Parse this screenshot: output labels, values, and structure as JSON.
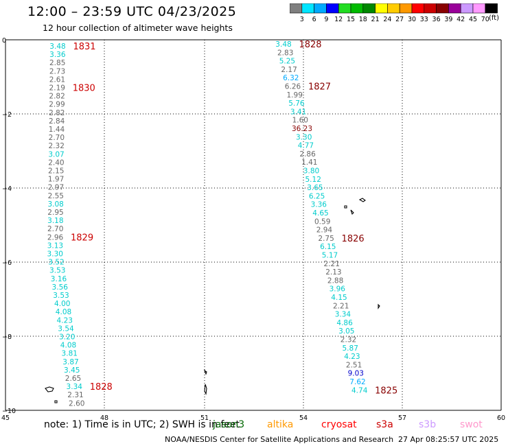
{
  "header": {
    "title": "12:00 – 23:59 UTC 04/23/2025",
    "subtitle": "12 hour collection of altimeter wave heights"
  },
  "colorbar": {
    "labels": [
      "3",
      "6",
      "9",
      "12",
      "15",
      "18",
      "21",
      "24",
      "27",
      "30",
      "33",
      "36",
      "39",
      "42",
      "45",
      "70"
    ],
    "colors": [
      "#7f7f7f",
      "#00e5ff",
      "#00aaff",
      "#0000ff",
      "#22dd22",
      "#00bb00",
      "#008800",
      "#ffff00",
      "#ffcc00",
      "#ff9900",
      "#ff0000",
      "#cc0000",
      "#880000",
      "#990099",
      "#cc99ff",
      "#ff99ff",
      "#000000"
    ],
    "unit": "(ft)"
  },
  "axes": {
    "x_ticks": [
      "45",
      "48",
      "51",
      "54",
      "57",
      "60"
    ],
    "y_ticks": [
      "0",
      "−2",
      "−4",
      "−6",
      "−8",
      "−10"
    ]
  },
  "tracks": [
    {
      "hour_labels": [
        {
          "text": "1831",
          "color": "#cc0000",
          "index": 0
        },
        {
          "text": "1830",
          "color": "#cc0000",
          "index": 5
        },
        {
          "text": "1829",
          "color": "#cc0000",
          "index": 23
        },
        {
          "text": "1828",
          "color": "#cc0000",
          "index": 41
        }
      ],
      "points": [
        {
          "v": "3.48",
          "c": "#00cccc"
        },
        {
          "v": "3.36",
          "c": "#00cccc"
        },
        {
          "v": "2.85",
          "c": "#666666"
        },
        {
          "v": "2.73",
          "c": "#666666"
        },
        {
          "v": "2.61",
          "c": "#666666"
        },
        {
          "v": "2.19",
          "c": "#666666"
        },
        {
          "v": "2.82",
          "c": "#666666"
        },
        {
          "v": "2.99",
          "c": "#666666"
        },
        {
          "v": "2.82",
          "c": "#666666"
        },
        {
          "v": "2.84",
          "c": "#666666"
        },
        {
          "v": "1.44",
          "c": "#666666"
        },
        {
          "v": "2.70",
          "c": "#666666"
        },
        {
          "v": "2.32",
          "c": "#666666"
        },
        {
          "v": "3.07",
          "c": "#00cccc"
        },
        {
          "v": "2.40",
          "c": "#666666"
        },
        {
          "v": "2.15",
          "c": "#666666"
        },
        {
          "v": "1.97",
          "c": "#666666"
        },
        {
          "v": "2.97",
          "c": "#666666"
        },
        {
          "v": "2.55",
          "c": "#666666"
        },
        {
          "v": "3.08",
          "c": "#00cccc"
        },
        {
          "v": "2.95",
          "c": "#666666"
        },
        {
          "v": "3.18",
          "c": "#00cccc"
        },
        {
          "v": "2.70",
          "c": "#666666"
        },
        {
          "v": "2.96",
          "c": "#666666"
        },
        {
          "v": "3.13",
          "c": "#00cccc"
        },
        {
          "v": "3.30",
          "c": "#00cccc"
        },
        {
          "v": "3.52",
          "c": "#00cccc"
        },
        {
          "v": "3.53",
          "c": "#00cccc"
        },
        {
          "v": "3.16",
          "c": "#00cccc"
        },
        {
          "v": "3.56",
          "c": "#00cccc"
        },
        {
          "v": "3.53",
          "c": "#00cccc"
        },
        {
          "v": "4.00",
          "c": "#00cccc"
        },
        {
          "v": "4.08",
          "c": "#00cccc"
        },
        {
          "v": "4.23",
          "c": "#00cccc"
        },
        {
          "v": "3.54",
          "c": "#00cccc"
        },
        {
          "v": "3.20",
          "c": "#00cccc"
        },
        {
          "v": "4.08",
          "c": "#00cccc"
        },
        {
          "v": "3.81",
          "c": "#00cccc"
        },
        {
          "v": "3.87",
          "c": "#00cccc"
        },
        {
          "v": "3.45",
          "c": "#00cccc"
        },
        {
          "v": "2.65",
          "c": "#666666"
        },
        {
          "v": "3.34",
          "c": "#00cccc"
        },
        {
          "v": "2.31",
          "c": "#666666"
        },
        {
          "v": "2.60",
          "c": "#666666"
        }
      ]
    },
    {
      "hour_labels": [
        {
          "text": "1828",
          "color": "#880000",
          "index": 0
        },
        {
          "text": "1827",
          "color": "#880000",
          "index": 5
        },
        {
          "text": "1826",
          "color": "#880000",
          "index": 23
        },
        {
          "text": "1825",
          "color": "#880000",
          "index": 41
        }
      ],
      "points": [
        {
          "v": "3.48",
          "c": "#00cccc"
        },
        {
          "v": "2.83",
          "c": "#666666"
        },
        {
          "v": "5.25",
          "c": "#00cccc"
        },
        {
          "v": "2.17",
          "c": "#666666"
        },
        {
          "v": "6.32",
          "c": "#00aaff"
        },
        {
          "v": "6.26",
          "c": "#666666"
        },
        {
          "v": "1.99",
          "c": "#666666"
        },
        {
          "v": "5.76",
          "c": "#00cccc"
        },
        {
          "v": "3.41",
          "c": "#00cccc"
        },
        {
          "v": "1.60",
          "c": "#666666"
        },
        {
          "v": "36.23",
          "c": "#880000"
        },
        {
          "v": "3.30",
          "c": "#00cccc"
        },
        {
          "v": "4.77",
          "c": "#00cccc"
        },
        {
          "v": "2.86",
          "c": "#666666"
        },
        {
          "v": "1.41",
          "c": "#666666"
        },
        {
          "v": "3.80",
          "c": "#00cccc"
        },
        {
          "v": "5.12",
          "c": "#00cccc"
        },
        {
          "v": "3.65",
          "c": "#00cccc"
        },
        {
          "v": "6.25",
          "c": "#00cccc"
        },
        {
          "v": "3.36",
          "c": "#00cccc"
        },
        {
          "v": "4.65",
          "c": "#00cccc"
        },
        {
          "v": "0.59",
          "c": "#666666"
        },
        {
          "v": "2.94",
          "c": "#666666"
        },
        {
          "v": "2.75",
          "c": "#666666"
        },
        {
          "v": "6.15",
          "c": "#00cccc"
        },
        {
          "v": "5.17",
          "c": "#00cccc"
        },
        {
          "v": "2.21",
          "c": "#666666"
        },
        {
          "v": "2.13",
          "c": "#666666"
        },
        {
          "v": "2.88",
          "c": "#666666"
        },
        {
          "v": "3.96",
          "c": "#00cccc"
        },
        {
          "v": "4.15",
          "c": "#00cccc"
        },
        {
          "v": "2.21",
          "c": "#666666"
        },
        {
          "v": "3.34",
          "c": "#00cccc"
        },
        {
          "v": "4.86",
          "c": "#00cccc"
        },
        {
          "v": "3.05",
          "c": "#00cccc"
        },
        {
          "v": "2.32",
          "c": "#666666"
        },
        {
          "v": "5.87",
          "c": "#00cccc"
        },
        {
          "v": "4.23",
          "c": "#00cccc"
        },
        {
          "v": "2.51",
          "c": "#666666"
        },
        {
          "v": "9.03",
          "c": "#0000cc"
        },
        {
          "v": "7.62",
          "c": "#00aaff"
        },
        {
          "v": "4.74",
          "c": "#00cccc"
        }
      ]
    }
  ],
  "footer": {
    "note": "note:  1) Time is in UTC; 2) SWH is in feet",
    "satellites": [
      {
        "name": "jason3",
        "color": "#006600"
      },
      {
        "name": "altika",
        "color": "#ff9900"
      },
      {
        "name": "cryosat",
        "color": "#ff0000"
      },
      {
        "name": "s3a",
        "color": "#cc0000"
      },
      {
        "name": "s3b",
        "color": "#cc99ff"
      },
      {
        "name": "swot",
        "color": "#ff99cc"
      }
    ],
    "credit": "NOAA/NESDIS Center for Satellite Applications and Research",
    "timestamp": "27 Apr 08:25:57 UTC 2025"
  }
}
